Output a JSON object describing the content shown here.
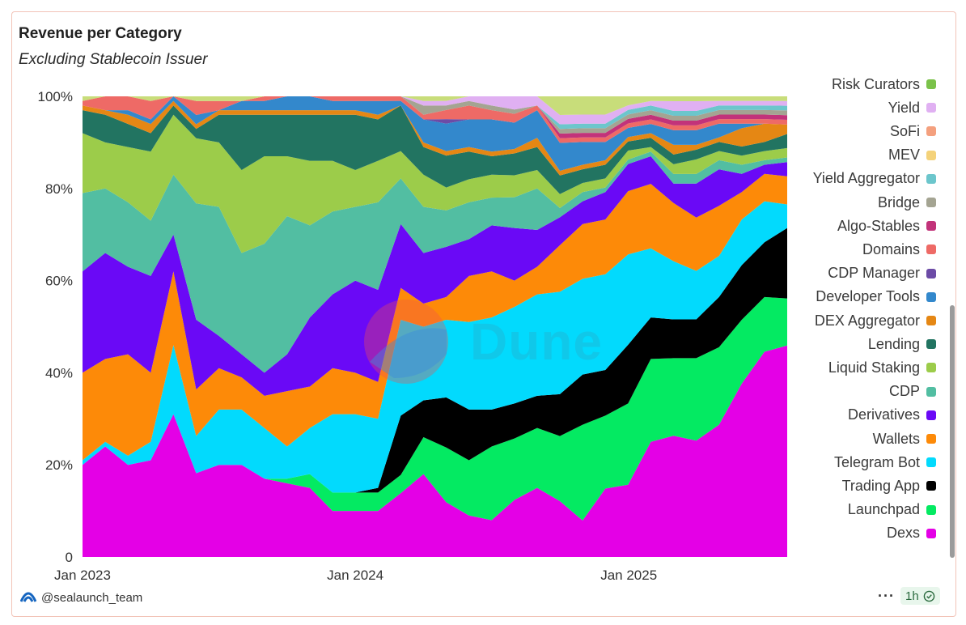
{
  "header": {
    "title": "Revenue per Category",
    "subtitle": "Excluding Stablecoin Issuer"
  },
  "watermark": {
    "text": "Dune"
  },
  "footer": {
    "author": "@sealaunch_team",
    "refresh_label": "1h",
    "more_label": "···"
  },
  "colors": {
    "Risk Curators": "#7bc24a",
    "Yield": "#e0b0f2",
    "SoFi": "#f4a07e",
    "MEV": "#f4d27a",
    "Yield Aggregator": "#6cc6cc",
    "Bridge": "#a4a492",
    "Algo-Stables": "#c2337a",
    "Domains": "#ee6a66",
    "CDP Manager": "#6c4ba6",
    "Developer Tools": "#3388cc",
    "DEX Aggregator": "#e58714",
    "Lending": "#227461",
    "Liquid Staking": "#9ccc4a",
    "CDP": "#52bea2",
    "Derivatives": "#6a09f6",
    "Wallets": "#fd8a08",
    "Telegram Bot": "#02dafd",
    "Trading App": "#000000",
    "Launchpad": "#04ea62",
    "Dexs": "#e400e6",
    "Other Light": "#c8dd7a"
  },
  "chart_data": {
    "type": "area",
    "stacked": "percent",
    "title": "Revenue per Category",
    "subtitle": "Excluding Stablecoin Issuer",
    "xlabel": "",
    "ylabel": "",
    "ylim": [
      0,
      100
    ],
    "y_ticks": [
      "0",
      "20%",
      "40%",
      "60%",
      "80%",
      "100%"
    ],
    "x_tick_labels": [
      "Jan 2023",
      "Jan 2024",
      "Jan 2025"
    ],
    "x_tick_dates": [
      "2023-01-01",
      "2024-01-01",
      "2025-01-01"
    ],
    "legend_position": "right",
    "x": [
      "2023-01-01",
      "2023-02-01",
      "2023-03-01",
      "2023-04-01",
      "2023-05-01",
      "2023-06-01",
      "2023-07-01",
      "2023-08-01",
      "2023-09-01",
      "2023-10-01",
      "2023-11-01",
      "2023-12-01",
      "2024-01-01",
      "2024-02-01",
      "2024-03-01",
      "2024-04-01",
      "2024-05-01",
      "2024-06-01",
      "2024-07-01",
      "2024-08-01",
      "2024-09-01",
      "2024-10-01",
      "2024-11-01",
      "2024-12-01",
      "2025-01-01",
      "2025-02-01",
      "2025-03-01",
      "2025-04-01",
      "2025-05-01",
      "2025-06-01",
      "2025-07-01",
      "2025-08-01"
    ],
    "series": [
      {
        "name": "Dexs",
        "values": [
          20,
          24,
          20,
          21,
          31,
          18,
          20,
          20,
          17,
          16,
          15,
          10,
          10,
          10,
          14,
          18,
          12,
          9,
          8,
          13,
          15,
          12,
          8,
          15,
          16,
          25,
          25,
          24,
          29,
          38,
          45,
          45
        ]
      },
      {
        "name": "Launchpad",
        "values": [
          0,
          0,
          0,
          0,
          0,
          0,
          0,
          0,
          0,
          1,
          3,
          4,
          4,
          4,
          4,
          8,
          12,
          12,
          16,
          14,
          13,
          14,
          21,
          16,
          18,
          18,
          16,
          17,
          17,
          14,
          12,
          10
        ]
      },
      {
        "name": "Trading App",
        "values": [
          0,
          0,
          0,
          0,
          0,
          0,
          0,
          0,
          0,
          0,
          0,
          0,
          0,
          1,
          13,
          8,
          11,
          11,
          8,
          8,
          7,
          9,
          11,
          10,
          13,
          9,
          8,
          8,
          11,
          12,
          12,
          15
        ]
      },
      {
        "name": "Telegram Bot",
        "values": [
          1,
          1,
          2,
          4,
          15,
          8,
          12,
          12,
          11,
          7,
          10,
          17,
          17,
          15,
          21,
          16,
          17,
          19,
          20,
          22,
          22,
          22,
          21,
          21,
          20,
          15,
          12,
          10,
          9,
          10,
          9,
          5
        ]
      },
      {
        "name": "Wallets",
        "values": [
          19,
          18,
          22,
          15,
          16,
          10,
          9,
          7,
          7,
          12,
          9,
          10,
          9,
          8,
          7,
          5,
          5,
          10,
          10,
          6,
          6,
          10,
          12,
          12,
          14,
          14,
          12,
          11,
          11,
          6,
          6,
          6
        ]
      },
      {
        "name": "Derivatives",
        "values": [
          22,
          23,
          19,
          21,
          8,
          15,
          7,
          5,
          5,
          8,
          15,
          16,
          20,
          20,
          14,
          11,
          11,
          8,
          10,
          12,
          8,
          6,
          5,
          6,
          6,
          6,
          4,
          7,
          8,
          4,
          2,
          3
        ]
      },
      {
        "name": "CDP",
        "values": [
          17,
          14,
          14,
          12,
          13,
          25,
          28,
          22,
          28,
          30,
          20,
          18,
          16,
          19,
          10,
          10,
          8,
          8,
          6,
          7,
          9,
          2,
          2,
          1,
          1,
          1,
          2,
          2,
          2,
          2,
          1,
          1
        ]
      },
      {
        "name": "Liquid Staking",
        "values": [
          13,
          10,
          12,
          15,
          13,
          14,
          14,
          18,
          19,
          13,
          14,
          11,
          8,
          9,
          6,
          7,
          5,
          5,
          5,
          5,
          4,
          3,
          2,
          2,
          2,
          1,
          2,
          3,
          2,
          2,
          2,
          2
        ]
      },
      {
        "name": "Lending",
        "values": [
          5,
          6,
          5,
          4,
          2,
          2,
          6,
          12,
          9,
          9,
          10,
          10,
          12,
          9,
          10,
          6,
          7,
          6,
          4,
          5,
          5,
          4,
          3,
          3,
          2,
          2,
          2,
          2,
          2,
          2,
          2,
          3
        ]
      },
      {
        "name": "DEX Aggregator",
        "values": [
          1,
          1,
          2,
          2,
          1,
          1,
          1,
          1,
          1,
          1,
          1,
          1,
          1,
          1,
          0,
          1,
          1,
          1,
          1,
          1,
          2,
          1,
          1,
          1,
          1,
          1,
          2,
          1,
          1,
          4,
          4,
          2
        ]
      },
      {
        "name": "Developer Tools",
        "values": [
          0,
          0,
          1,
          1,
          1,
          2,
          0,
          2,
          2,
          3,
          3,
          2,
          2,
          3,
          1,
          5,
          6,
          6,
          7,
          6,
          6,
          6,
          5,
          4,
          2,
          2,
          3,
          3,
          3,
          1,
          0,
          0
        ]
      },
      {
        "name": "CDP Manager",
        "values": [
          0,
          0,
          0,
          0,
          0,
          0,
          0,
          0,
          0,
          0,
          0,
          0,
          0,
          0,
          0,
          0,
          1,
          0,
          0,
          0,
          0,
          0,
          0,
          0,
          0,
          0,
          0,
          0,
          0,
          0,
          0,
          0
        ]
      },
      {
        "name": "Domains",
        "values": [
          1,
          3,
          3,
          4,
          0,
          3,
          2,
          0,
          1,
          0,
          0,
          1,
          1,
          1,
          1,
          1,
          2,
          3,
          2,
          2,
          1,
          1,
          1,
          1,
          1,
          1,
          1,
          1,
          1,
          1,
          1,
          1
        ]
      },
      {
        "name": "Algo-Stables",
        "values": [
          0,
          0,
          0,
          0,
          0,
          0,
          0,
          0,
          0,
          0,
          0,
          0,
          0,
          0,
          0,
          0,
          0,
          0,
          0,
          0,
          0,
          1,
          1,
          1,
          1,
          1,
          1,
          1,
          1,
          1,
          1,
          1
        ]
      },
      {
        "name": "Bridge",
        "values": [
          0,
          0,
          0,
          0,
          0,
          0,
          0,
          0,
          0,
          0,
          0,
          0,
          0,
          0,
          0,
          2,
          1,
          1,
          1,
          1,
          0,
          1,
          1,
          1,
          1,
          1,
          1,
          1,
          1,
          1,
          1,
          1
        ]
      },
      {
        "name": "Yield Aggregator",
        "values": [
          0,
          0,
          0,
          0,
          0,
          0,
          0,
          0,
          0,
          0,
          0,
          0,
          0,
          0,
          0,
          0,
          0,
          0,
          0,
          0,
          0,
          1,
          1,
          1,
          1,
          1,
          1,
          1,
          1,
          1,
          1,
          1
        ]
      },
      {
        "name": "MEV",
        "values": [
          0,
          0,
          0,
          0,
          0,
          0,
          0,
          0,
          0,
          0,
          0,
          0,
          0,
          0,
          0,
          0,
          0,
          0,
          0,
          0,
          0,
          0,
          0,
          0,
          0,
          0,
          0,
          0,
          0,
          0,
          0,
          0
        ]
      },
      {
        "name": "SoFi",
        "values": [
          0,
          0,
          0,
          0,
          0,
          0,
          0,
          0,
          0,
          0,
          0,
          0,
          0,
          0,
          0,
          0,
          0,
          0,
          0,
          0,
          0,
          0,
          0,
          0,
          0,
          0,
          0,
          0,
          0,
          0,
          0,
          0
        ]
      },
      {
        "name": "Yield",
        "values": [
          0,
          0,
          0,
          0,
          0,
          0,
          0,
          0,
          0,
          0,
          0,
          0,
          0,
          0,
          0,
          1,
          1,
          1,
          2,
          3,
          2,
          2,
          2,
          2,
          1,
          1,
          2,
          2,
          1,
          1,
          1,
          1
        ]
      },
      {
        "name": "Risk Curators",
        "values": [
          0,
          0,
          0,
          0,
          0,
          0,
          0,
          0,
          0,
          0,
          0,
          0,
          0,
          0,
          0,
          0,
          0,
          0,
          0,
          0,
          0,
          0,
          0,
          0,
          0,
          0,
          0,
          0,
          0,
          0,
          0,
          0
        ]
      },
      {
        "name": "",
        "color_key": "Other Light",
        "values": [
          1,
          0,
          0,
          1,
          0,
          1,
          1,
          1,
          0,
          0,
          0,
          0,
          0,
          0,
          0,
          1,
          1,
          0,
          0,
          0,
          0,
          4,
          4,
          4,
          2,
          1,
          1,
          1,
          1,
          1,
          1,
          1
        ]
      }
    ],
    "legend": [
      "Risk Curators",
      "Yield",
      "SoFi",
      "MEV",
      "Yield Aggregator",
      "Bridge",
      "Algo-Stables",
      "Domains",
      "CDP Manager",
      "Developer Tools",
      "DEX Aggregator",
      "Lending",
      "Liquid Staking",
      "CDP",
      "Derivatives",
      "Wallets",
      "Telegram Bot",
      "Trading App",
      "Launchpad",
      "Dexs"
    ]
  }
}
